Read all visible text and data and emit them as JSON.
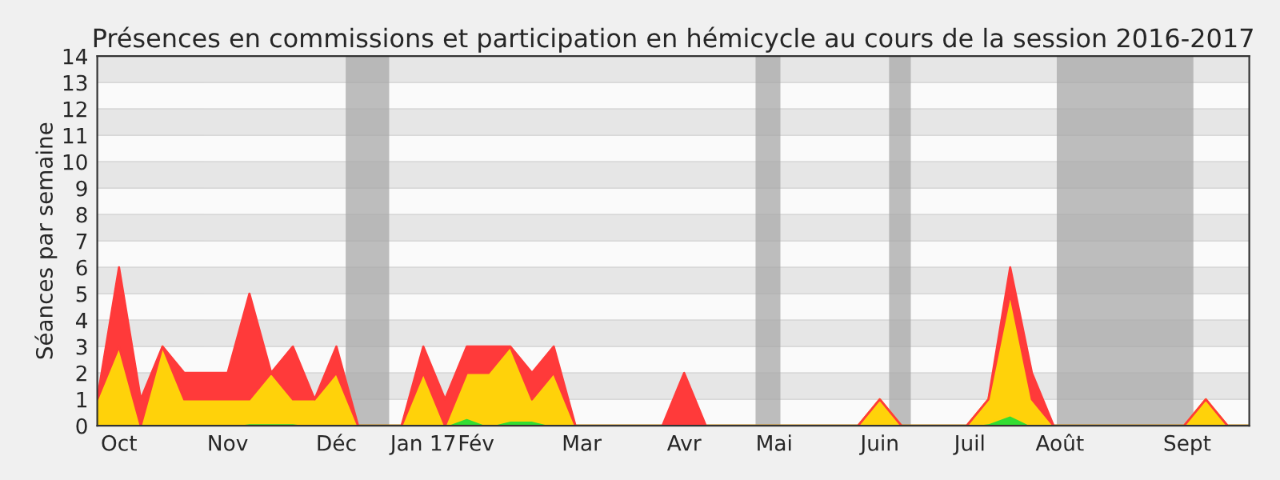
{
  "chart_data": {
    "type": "area",
    "stacked": true,
    "title": "Présences en commissions et participation en hémicycle au cours de la session 2016-2017",
    "ylabel": "Séances par semaine",
    "x": [
      "2016-09-26",
      "2016-10-03",
      "2016-10-10",
      "2016-10-17",
      "2016-10-24",
      "2016-10-31",
      "2016-11-07",
      "2016-11-14",
      "2016-11-21",
      "2016-11-28",
      "2016-12-05",
      "2016-12-12",
      "2016-12-19",
      "2016-12-26",
      "2017-01-02",
      "2017-01-09",
      "2017-01-16",
      "2017-01-23",
      "2017-01-30",
      "2017-02-06",
      "2017-02-13",
      "2017-02-20",
      "2017-02-27",
      "2017-03-06",
      "2017-03-13",
      "2017-03-20",
      "2017-03-27",
      "2017-04-03",
      "2017-04-10",
      "2017-04-17",
      "2017-04-24",
      "2017-05-01",
      "2017-05-08",
      "2017-05-15",
      "2017-05-22",
      "2017-05-29",
      "2017-06-05",
      "2017-06-12",
      "2017-06-19",
      "2017-06-26",
      "2017-07-03",
      "2017-07-10",
      "2017-07-17",
      "2017-07-24",
      "2017-07-31",
      "2017-08-07",
      "2017-08-14",
      "2017-08-21",
      "2017-08-28",
      "2017-09-04",
      "2017-09-11",
      "2017-09-18",
      "2017-09-25",
      "2017-10-02"
    ],
    "series": [
      {
        "color": "#33dd33",
        "values": [
          0,
          0,
          0,
          0,
          0,
          0,
          0,
          0.1,
          0.1,
          0.1,
          0,
          0,
          0,
          0,
          0,
          0,
          0,
          0.3,
          0,
          0.2,
          0.2,
          0,
          0,
          0,
          0,
          0,
          0,
          0,
          0,
          0,
          0,
          0,
          0,
          0,
          0,
          0,
          0,
          0,
          0,
          0,
          0,
          0.1,
          0.4,
          0,
          0,
          0,
          0,
          0,
          0,
          0,
          0,
          0,
          0,
          0
        ]
      },
      {
        "color": "#ffd20a",
        "values": [
          1,
          3,
          0,
          3,
          1,
          1,
          1,
          0.9,
          1.9,
          0.9,
          1,
          2,
          0,
          0,
          0,
          2,
          0,
          1.7,
          2,
          2.8,
          0.8,
          2,
          0,
          0,
          0,
          0,
          0,
          0,
          0,
          0,
          0,
          0,
          0,
          0,
          0,
          0,
          1,
          0,
          0,
          0,
          0,
          0.9,
          4.6,
          1,
          0,
          0,
          0,
          0,
          0,
          0,
          0,
          1,
          0,
          0
        ]
      },
      {
        "color": "#ff3a3a",
        "values": [
          0,
          3,
          1,
          0,
          1,
          1,
          1,
          4,
          0,
          2,
          0,
          1,
          0,
          0,
          0,
          1,
          1,
          1,
          1,
          0,
          1,
          1,
          0,
          0,
          0,
          0,
          0,
          2,
          0,
          0,
          0,
          0,
          0,
          0,
          0,
          0,
          0,
          0,
          0,
          0,
          0,
          0,
          1,
          1,
          0,
          0,
          0,
          0,
          0,
          0,
          0,
          0,
          0,
          0
        ]
      }
    ],
    "xlim": [
      "2016-09-26",
      "2017-10-02"
    ],
    "xticks": [
      {
        "value": "2016-10-03",
        "label": "Oct"
      },
      {
        "value": "2016-11-07",
        "label": "Nov"
      },
      {
        "value": "2016-12-12",
        "label": "Déc"
      },
      {
        "value": "2017-01-09",
        "label": "Jan 17"
      },
      {
        "value": "2017-01-26",
        "label": "Fév"
      },
      {
        "value": "2017-03-01",
        "label": "Mar"
      },
      {
        "value": "2017-04-03",
        "label": "Avr"
      },
      {
        "value": "2017-05-02",
        "label": "Mai"
      },
      {
        "value": "2017-06-05",
        "label": "Juin"
      },
      {
        "value": "2017-07-04",
        "label": "Juil"
      },
      {
        "value": "2017-08-02",
        "label": "Août"
      },
      {
        "value": "2017-09-12",
        "label": "Sept"
      }
    ],
    "ylim": [
      0,
      14
    ],
    "yticks": [
      0,
      1,
      2,
      3,
      4,
      5,
      6,
      7,
      8,
      9,
      10,
      11,
      12,
      13,
      14
    ],
    "grid": "y",
    "bands": [
      {
        "axis": "x",
        "from": "2016-12-15",
        "to": "2016-12-29",
        "color": "#a8a8a8"
      },
      {
        "axis": "x",
        "from": "2017-04-26",
        "to": "2017-05-04",
        "color": "#a8a8a8"
      },
      {
        "axis": "x",
        "from": "2017-06-08",
        "to": "2017-06-15",
        "color": "#a8a8a8"
      },
      {
        "axis": "x",
        "from": "2017-08-01",
        "to": "2017-09-14",
        "color": "#a8a8a8"
      }
    ]
  }
}
